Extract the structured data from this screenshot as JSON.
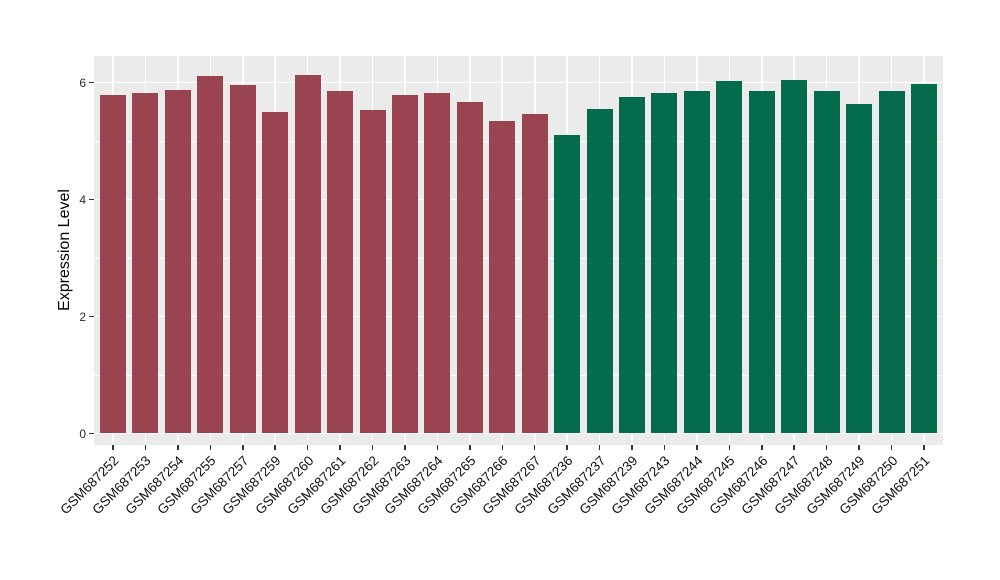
{
  "chart_data": {
    "type": "bar",
    "title": "",
    "xlabel": "",
    "ylabel": "Expression Level",
    "categories": [
      "GSM687252",
      "GSM687253",
      "GSM687254",
      "GSM687255",
      "GSM687257",
      "GSM687259",
      "GSM687260",
      "GSM687261",
      "GSM687262",
      "GSM687263",
      "GSM687264",
      "GSM687265",
      "GSM687266",
      "GSM687267",
      "GSM687236",
      "GSM687237",
      "GSM687239",
      "GSM687243",
      "GSM687244",
      "GSM687245",
      "GSM687246",
      "GSM687247",
      "GSM687248",
      "GSM687249",
      "GSM687250",
      "GSM687251"
    ],
    "values": [
      5.78,
      5.82,
      5.87,
      6.11,
      5.95,
      5.49,
      6.13,
      5.86,
      5.53,
      5.78,
      5.82,
      5.66,
      5.34,
      5.47,
      5.1,
      5.54,
      5.76,
      5.82,
      5.86,
      6.03,
      5.85,
      6.04,
      5.86,
      5.63,
      5.86,
      5.98
    ],
    "bar_groups": [
      0,
      0,
      0,
      0,
      0,
      0,
      0,
      0,
      0,
      0,
      0,
      0,
      0,
      0,
      1,
      1,
      1,
      1,
      1,
      1,
      1,
      1,
      1,
      1,
      1,
      1
    ],
    "group_colors": [
      "#9B4451",
      "#046B4C"
    ],
    "y_ticks": [
      0,
      2,
      4,
      6
    ],
    "y_minor_ticks": [
      1,
      3,
      5
    ],
    "ylim": [
      0,
      6.45
    ],
    "x_label_rotation": 45,
    "grid": true,
    "legend_position": "none",
    "panel_background": "#EBEBEB",
    "gridline_color": "#FFFFFF"
  }
}
